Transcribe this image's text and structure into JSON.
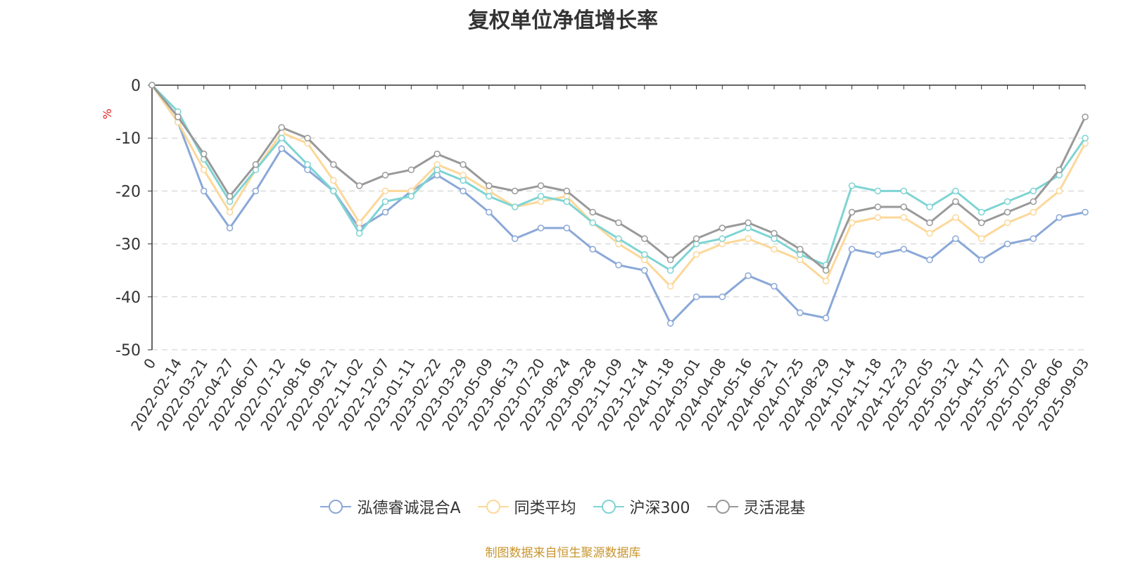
{
  "chart_data": {
    "type": "line",
    "title": "复权单位净值增长率",
    "ylabel": "%",
    "ylim": [
      -50,
      0
    ],
    "yticks": [
      0,
      -10,
      -20,
      -30,
      -40,
      -50
    ],
    "grid": true,
    "legend_position": "bottom",
    "categories": [
      "0",
      "2022-02-14",
      "2022-03-21",
      "2022-04-27",
      "2022-06-07",
      "2022-07-12",
      "2022-08-16",
      "2022-09-21",
      "2022-11-02",
      "2022-12-07",
      "2023-01-11",
      "2023-02-22",
      "2023-03-29",
      "2023-05-09",
      "2023-06-13",
      "2023-07-20",
      "2023-08-24",
      "2023-09-28",
      "2023-11-09",
      "2023-12-14",
      "2024-01-18",
      "2024-03-01",
      "2024-04-08",
      "2024-05-16",
      "2024-06-21",
      "2024-07-25",
      "2024-08-29",
      "2024-10-14",
      "2024-11-18",
      "2024-12-23",
      "2025-02-05",
      "2025-03-12",
      "2025-04-17",
      "2025-05-27",
      "2025-07-02",
      "2025-08-06",
      "2025-09-03"
    ],
    "series": [
      {
        "name": "泓德睿诚混合A",
        "color": "#8aa8d8",
        "values": [
          0,
          -7,
          -20,
          -27,
          -20,
          -12,
          -16,
          -20,
          -27,
          -24,
          -20,
          -17,
          -20,
          -24,
          -29,
          -27,
          -27,
          -31,
          -34,
          -35,
          -45,
          -40,
          -40,
          -36,
          -38,
          -43,
          -44,
          -31,
          -32,
          -31,
          -33,
          -29,
          -33,
          -30,
          -29,
          -25,
          -24
        ]
      },
      {
        "name": "同类平均",
        "color": "#fcd89a",
        "values": [
          0,
          -7,
          -16,
          -24,
          -16,
          -9,
          -11,
          -18,
          -26,
          -20,
          -20,
          -15,
          -17,
          -20,
          -23,
          -22,
          -21,
          -26,
          -30,
          -33,
          -38,
          -32,
          -30,
          -29,
          -31,
          -33,
          -37,
          -26,
          -25,
          -25,
          -28,
          -25,
          -29,
          -26,
          -24,
          -20,
          -11
        ]
      },
      {
        "name": "沪深300",
        "color": "#7fd4d4",
        "values": [
          0,
          -5,
          -14,
          -22,
          -16,
          -10,
          -15,
          -20,
          -28,
          -22,
          -21,
          -16,
          -18,
          -21,
          -23,
          -21,
          -22,
          -26,
          -29,
          -32,
          -35,
          -30,
          -29,
          -27,
          -29,
          -32,
          -34,
          -19,
          -20,
          -20,
          -23,
          -20,
          -24,
          -22,
          -20,
          -17,
          -10
        ]
      },
      {
        "name": "灵活混基",
        "color": "#999999",
        "values": [
          0,
          -6,
          -13,
          -21,
          -15,
          -8,
          -10,
          -15,
          -19,
          -17,
          -16,
          -13,
          -15,
          -19,
          -20,
          -19,
          -20,
          -24,
          -26,
          -29,
          -33,
          -29,
          -27,
          -26,
          -28,
          -31,
          -35,
          -24,
          -23,
          -23,
          -26,
          -22,
          -26,
          -24,
          -22,
          -16,
          -6
        ]
      }
    ]
  },
  "footer": "制图数据来自恒生聚源数据库"
}
